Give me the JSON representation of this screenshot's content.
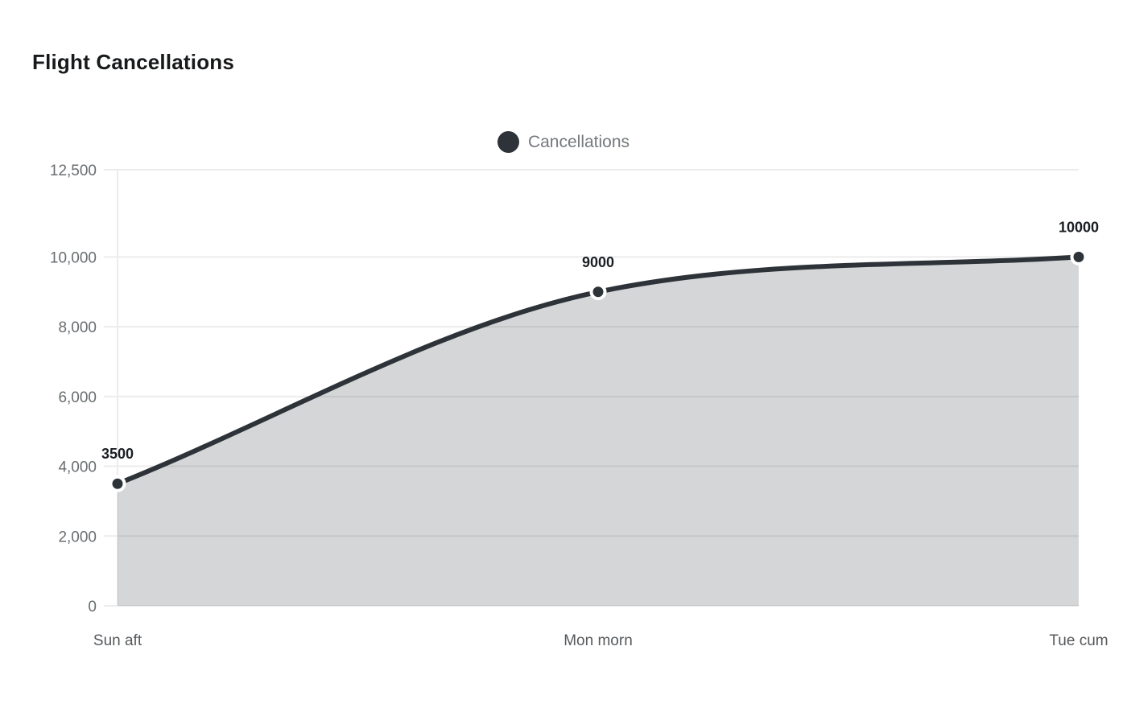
{
  "title": {
    "text": "Flight Cancellations"
  },
  "legend": {
    "position": "top",
    "items": [
      {
        "label": "Cancellations",
        "marker": "circle-icon",
        "color": "#2d3338"
      }
    ]
  },
  "chart_data": {
    "type": "area",
    "title": "Flight Cancellations",
    "categories": [
      "Sun aft",
      "Mon morn",
      "Tue cum"
    ],
    "series": [
      {
        "name": "Cancellations",
        "values": [
          3500,
          9000,
          10000
        ]
      }
    ],
    "point_labels": [
      "3500",
      "9000",
      "10000"
    ],
    "xlabel": "",
    "ylabel": "",
    "ylim": [
      0,
      12500
    ],
    "y_ticks": [
      0,
      2000,
      4000,
      6000,
      8000,
      10000,
      12500
    ],
    "y_tick_labels": [
      "0",
      "2,000",
      "4,000",
      "6,000",
      "8,000",
      "10,000",
      "12,500"
    ],
    "grid": true,
    "smooth": true,
    "legend_position": "top",
    "colors": {
      "line": "#2d3338",
      "point_fill": "#2d3338",
      "point_ring": "#ffffff",
      "area_fill": "rgba(45,51,56,0.2)",
      "gridline": "#ececec",
      "y_tick_label": "#696d70",
      "x_tick_label": "#56595c",
      "data_label": "#1b1f23",
      "title": "#17191b",
      "legend_text": "#75797d"
    }
  }
}
